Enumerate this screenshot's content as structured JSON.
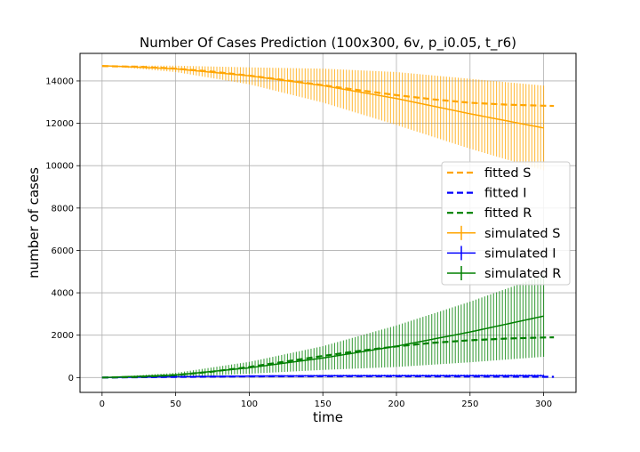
{
  "chart_data": {
    "type": "line",
    "title": "Number Of Cases Prediction (100x300, 6v, p_i0.05, t_r6)",
    "xlabel": "time",
    "ylabel": "number of cases",
    "xlim": [
      -15,
      322
    ],
    "ylim": [
      -700,
      15300
    ],
    "xticks": [
      0,
      50,
      100,
      150,
      200,
      250,
      300
    ],
    "yticks": [
      0,
      2000,
      4000,
      6000,
      8000,
      10000,
      12000,
      14000
    ],
    "grid": true,
    "legend_position": "center-right",
    "colors": {
      "S": "#FFA500",
      "I": "#0000FF",
      "R": "#008000"
    },
    "fitted": [
      {
        "name": "fitted S",
        "color": "#FFA500",
        "style": "dashed",
        "x": [
          0,
          25,
          50,
          75,
          100,
          125,
          150,
          175,
          200,
          225,
          250,
          275,
          300,
          307
        ],
        "y": [
          14700,
          14670,
          14580,
          14440,
          14250,
          14030,
          13800,
          13560,
          13330,
          13130,
          12970,
          12880,
          12830,
          12820
        ]
      },
      {
        "name": "fitted I",
        "color": "#0000FF",
        "style": "dashed",
        "x": [
          0,
          25,
          50,
          75,
          100,
          125,
          150,
          175,
          200,
          225,
          250,
          275,
          300,
          307
        ],
        "y": [
          0,
          15,
          30,
          45,
          55,
          62,
          65,
          65,
          62,
          57,
          50,
          43,
          36,
          35
        ]
      },
      {
        "name": "fitted R",
        "color": "#008000",
        "style": "dashed",
        "x": [
          0,
          25,
          50,
          75,
          100,
          125,
          150,
          175,
          200,
          225,
          250,
          275,
          300,
          307
        ],
        "y": [
          0,
          30,
          120,
          280,
          500,
          760,
          1020,
          1260,
          1470,
          1640,
          1760,
          1840,
          1890,
          1900
        ]
      }
    ],
    "simulated": [
      {
        "name": "simulated S",
        "color": "#FFA500",
        "x": [
          0,
          50,
          100,
          150,
          200,
          250,
          300
        ],
        "y": [
          14720,
          14570,
          14240,
          13780,
          13170,
          12450,
          11780
        ],
        "err": [
          0,
          150,
          400,
          800,
          1250,
          1650,
          2000
        ]
      },
      {
        "name": "simulated I",
        "color": "#0000FF",
        "x": [
          0,
          50,
          100,
          150,
          200,
          250,
          300
        ],
        "y": [
          0,
          40,
          70,
          85,
          90,
          90,
          90
        ],
        "err": [
          0,
          20,
          35,
          45,
          50,
          55,
          60
        ]
      },
      {
        "name": "simulated R",
        "color": "#008000",
        "x": [
          0,
          50,
          100,
          150,
          200,
          250,
          300
        ],
        "y": [
          0,
          120,
          460,
          920,
          1480,
          2150,
          2900
        ],
        "err": [
          0,
          100,
          280,
          560,
          980,
          1430,
          1920
        ]
      }
    ]
  }
}
